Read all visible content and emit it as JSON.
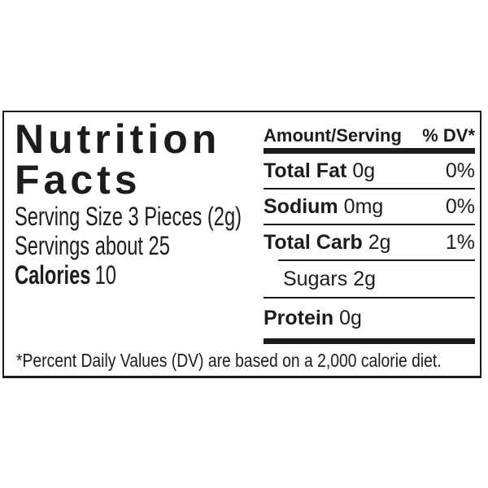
{
  "label": {
    "title_line1": "Nutrition",
    "title_line2": "Facts",
    "serving_size": "Serving Size 3 Pieces (2g)",
    "servings": "Servings about 25",
    "calories_label": "Calories",
    "calories_value": "10",
    "table": {
      "header": {
        "amount": "Amount/Serving",
        "dv": "% DV*"
      },
      "rows": [
        {
          "name": "Total Fat",
          "value": "0g",
          "dv": "0%"
        },
        {
          "name": "Sodium",
          "value": "0mg",
          "dv": "0%"
        },
        {
          "name": "Total Carb",
          "value": "2g",
          "dv": "1%"
        },
        {
          "name": "Sugars",
          "value": "2g",
          "dv": ""
        },
        {
          "name": "Protein",
          "value": "0g",
          "dv": ""
        }
      ]
    },
    "footnote": "*Percent Daily Values (DV) are based on a 2,000 calorie diet.",
    "colors": {
      "ink": "#1d1b1b",
      "background": "#ffffff"
    }
  }
}
